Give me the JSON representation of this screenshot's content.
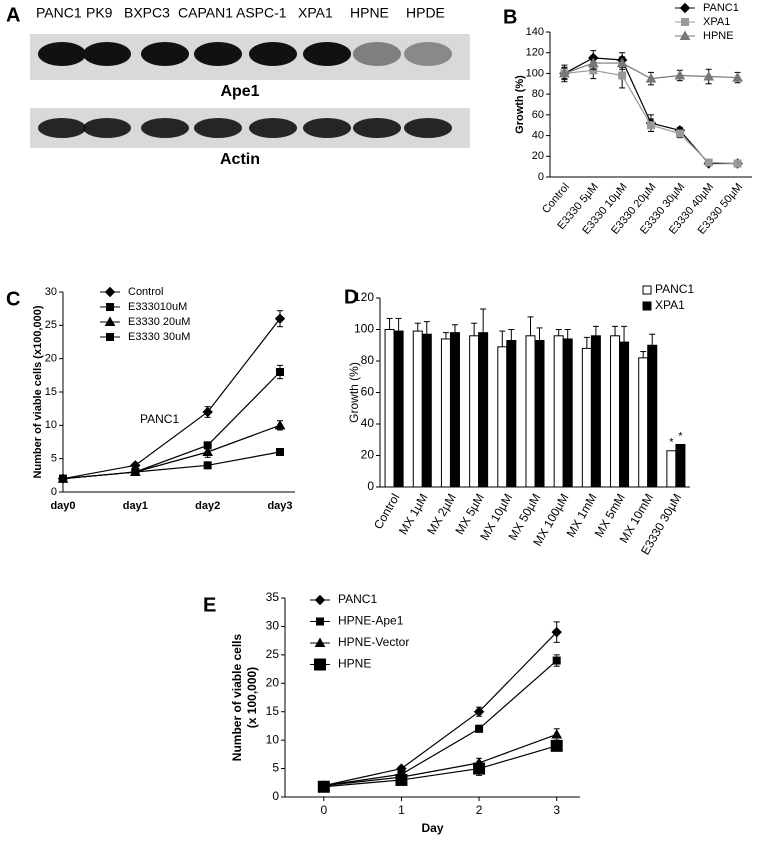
{
  "chart_data": [
    {
      "type": "blot",
      "panel_label": "A",
      "lanes": [
        "PANC1",
        "PK9",
        "BXPC3",
        "CAPAN1",
        "ASPC-1",
        "XPA1",
        "HPNE",
        "HPDE"
      ],
      "bands": [
        "Ape1",
        "Actin"
      ]
    },
    {
      "type": "line",
      "panel_label": "B",
      "ylabel": [
        "Growth (%)"
      ],
      "categories": [
        "Control",
        "E3330 5µM",
        "E3330 10µM",
        "E3330 20µM",
        "E3330 30µM",
        "E3330 40µM",
        "E3330 50µM"
      ],
      "ylim": [
        0,
        140
      ],
      "yticks": [
        0,
        20,
        40,
        60,
        80,
        100,
        120,
        140
      ],
      "legend": "top-right",
      "series": [
        {
          "name": "PANC1",
          "color": "#000000",
          "marker": "diamond",
          "values": [
            100,
            115,
            113,
            52,
            45,
            13,
            13
          ],
          "errors": [
            8,
            7,
            7,
            8,
            3,
            2,
            2
          ]
        },
        {
          "name": "XPA1",
          "color": "#999999",
          "marker": "square",
          "values": [
            100,
            103,
            98,
            50,
            42,
            14,
            13
          ],
          "errors": [
            6,
            8,
            12,
            6,
            4,
            3,
            3
          ]
        },
        {
          "name": "HPNE",
          "color": "#777777",
          "marker": "triangle",
          "values": [
            100,
            110,
            110,
            95,
            98,
            97,
            96
          ],
          "errors": [
            5,
            6,
            6,
            6,
            5,
            7,
            5
          ]
        }
      ]
    },
    {
      "type": "line",
      "panel_label": "C",
      "ylabel": [
        "Number of viable cells (x100,000)"
      ],
      "categories": [
        "day0",
        "day1",
        "day2",
        "day3"
      ],
      "annotations": [
        "PANC1"
      ],
      "ylim": [
        0,
        30
      ],
      "yticks": [
        0,
        5,
        10,
        15,
        20,
        25,
        30
      ],
      "legend": "top-left",
      "series": [
        {
          "name": "Control",
          "color": "#000000",
          "marker": "diamond",
          "values": [
            2,
            4,
            12,
            26
          ],
          "errors": [
            0,
            0.3,
            0.8,
            1.2
          ]
        },
        {
          "name": "E333010uM",
          "color": "#000000",
          "marker": "square",
          "values": [
            2,
            3,
            7,
            18
          ],
          "errors": [
            0,
            0.3,
            0.5,
            1
          ]
        },
        {
          "name": "E3330 20uM",
          "color": "#000000",
          "marker": "triangle",
          "values": [
            2,
            3,
            6,
            10
          ],
          "errors": [
            0,
            0.3,
            0.8,
            0.7
          ]
        },
        {
          "name": "E3330 30uM",
          "color": "#000000",
          "marker": "square",
          "values": [
            2,
            3,
            4,
            6
          ],
          "errors": [
            0,
            0.2,
            0.2,
            0.2
          ]
        }
      ]
    },
    {
      "type": "bar",
      "panel_label": "D",
      "ylabel": [
        "Growth (%)"
      ],
      "categories": [
        "Control",
        "MX 1µM",
        "MX 2µM",
        "MX 5µM",
        "MX 10µM",
        "MX 50µM",
        "MX 100µM",
        "MX 1mM",
        "MX 5mM",
        "MX 10mM",
        "E3330 30µM"
      ],
      "annotations": [
        "*",
        "*"
      ],
      "ylim": [
        0,
        120
      ],
      "yticks": [
        0,
        20,
        40,
        60,
        80,
        100,
        120
      ],
      "legend": "top-right",
      "series": [
        {
          "name": "PANC1",
          "color": "#ffffff",
          "values": [
            100,
            99,
            94,
            96,
            89,
            96,
            96,
            88,
            96,
            82,
            23
          ],
          "errors": [
            7,
            5,
            4,
            8,
            10,
            12,
            4,
            7,
            6,
            4,
            0
          ]
        },
        {
          "name": "XPA1",
          "color": "#000000",
          "values": [
            99,
            97,
            98,
            98,
            93,
            93,
            94,
            96,
            92,
            90,
            27
          ],
          "errors": [
            8,
            8,
            5,
            15,
            7,
            8,
            6,
            6,
            10,
            7,
            0
          ]
        }
      ]
    },
    {
      "type": "line",
      "panel_label": "E",
      "ylabel": [
        "Number of viable cells",
        "(x 100,000)"
      ],
      "xlabel": "Day",
      "x": [
        0,
        1,
        2,
        3
      ],
      "xlim": [
        -0.5,
        3.3
      ],
      "xticks": [
        0,
        1,
        2,
        3
      ],
      "ylim": [
        0,
        35
      ],
      "yticks": [
        0,
        5,
        10,
        15,
        20,
        25,
        30,
        35
      ],
      "legend": "top-left",
      "series": [
        {
          "name": "PANC1",
          "color": "#000000",
          "marker": "diamond",
          "values": [
            2,
            5,
            15,
            29
          ],
          "errors": [
            0.3,
            0.4,
            0.8,
            1.8
          ]
        },
        {
          "name": "HPNE-Ape1",
          "color": "#000000",
          "marker": "square",
          "values": [
            2,
            4,
            12,
            24
          ],
          "errors": [
            0.3,
            0.3,
            0.6,
            1
          ]
        },
        {
          "name": "HPNE-Vector",
          "color": "#000000",
          "marker": "triangle",
          "values": [
            2,
            3.5,
            6,
            11
          ],
          "errors": [
            0.3,
            0.4,
            0.8,
            1
          ]
        },
        {
          "name": "HPNE",
          "color": "#000000",
          "marker": "bigsquare",
          "values": [
            1.8,
            3,
            5,
            9
          ],
          "errors": [
            0.3,
            0.4,
            1.2,
            0.8
          ]
        }
      ]
    }
  ]
}
